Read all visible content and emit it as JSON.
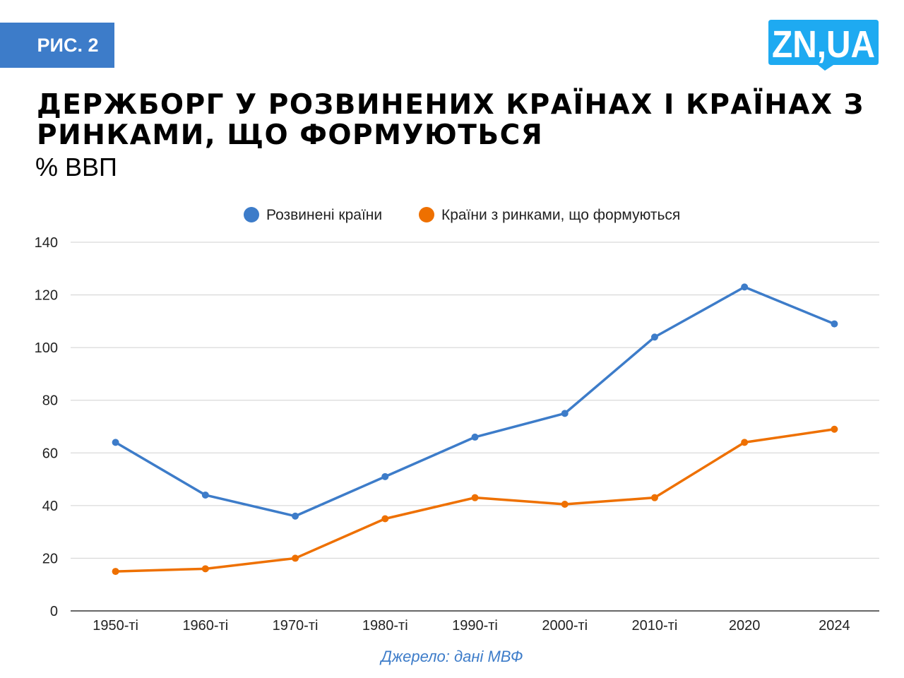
{
  "badge": "РИС. 2",
  "logo": "ZN,UA",
  "colors": {
    "badge": "#3d7cc9",
    "logo": "#1eaaf1",
    "series1": "#3d7cc9",
    "series2": "#ee7000"
  },
  "source": "Джерело: дані МВФ",
  "chart_data": {
    "type": "line",
    "title": "ДЕРЖБОРГ У РОЗВИНЕНИХ КРАЇНАХ І КРАЇНАХ З РИНКАМИ, ЩО ФОРМУЮТЬСЯ",
    "subtitle": "% ВВП",
    "categories": [
      "1950-ті",
      "1960-ті",
      "1970-ті",
      "1980-ті",
      "1990-ті",
      "2000-ті",
      "2010-ті",
      "2020",
      "2024"
    ],
    "series": [
      {
        "name": "Розвинені країни",
        "color": "#3d7cc9",
        "values": [
          64,
          44,
          36,
          51,
          66,
          75,
          104,
          123,
          109
        ]
      },
      {
        "name": "Країни з ринками, що формуються",
        "color": "#ee7000",
        "values": [
          15,
          16,
          20,
          35,
          43,
          40.5,
          43,
          64,
          69
        ]
      }
    ],
    "yticks": [
      0,
      20,
      40,
      60,
      80,
      100,
      120,
      140
    ],
    "ylim": [
      0,
      140
    ],
    "grid": true,
    "legend": "top-center"
  }
}
